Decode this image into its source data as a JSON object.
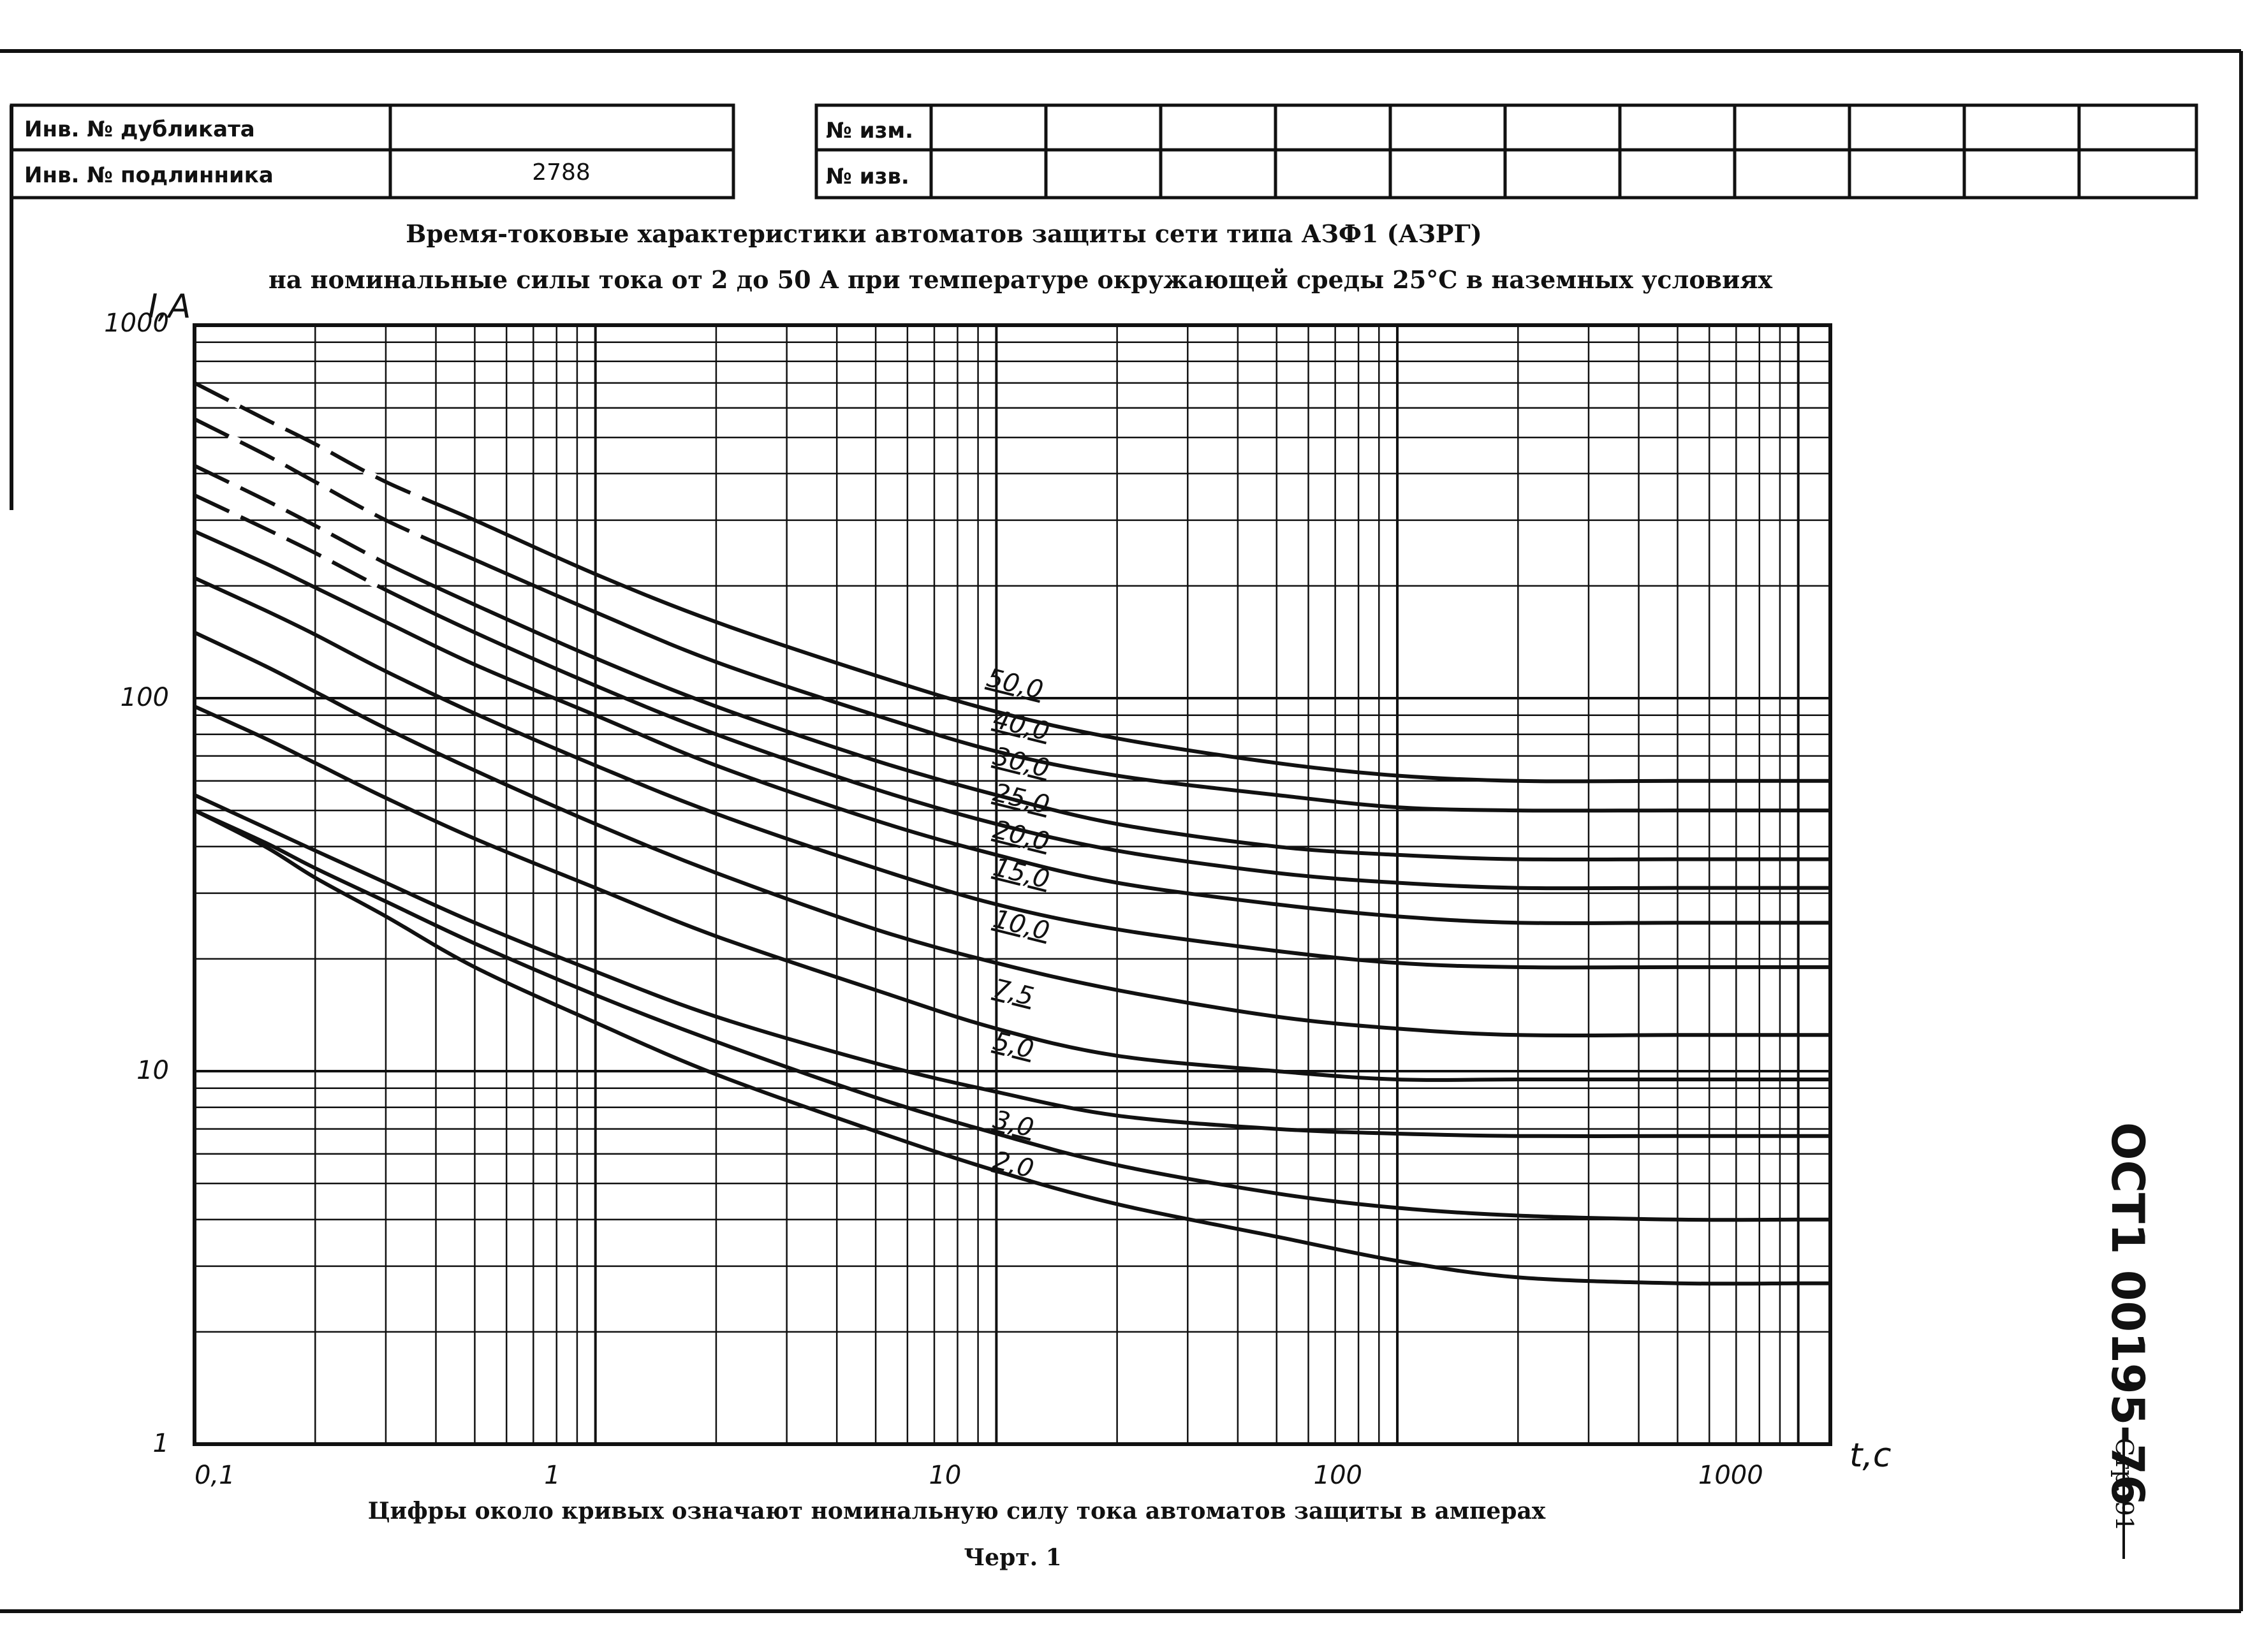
{
  "stamp": {
    "row1_label": "Инв. № дубликата",
    "row1_value": "",
    "row2_label": "Инв. № подлинника",
    "row2_value": "2788",
    "change_label": "№ изм.",
    "notice_label": "№ изв."
  },
  "title": {
    "line1": "Время-токовые характеристики автоматов защиты сети типа АЗФ1 (АЗРГ)",
    "line2": "на номинальные силы тока от 2 до 50 А при температуре окружающей среды 25°С в наземных условиях"
  },
  "footer": {
    "note": "Цифры около кривых означают номинальную силу тока автоматов защиты в амперах",
    "figure": "Черт. 1"
  },
  "side": {
    "doc_number": "ОСТ1 00195-76",
    "page_label": "Стр. 91"
  },
  "chart_data": {
    "type": "line",
    "xlabel": "t,c",
    "ylabel": "I,A",
    "xscale": "log",
    "yscale": "log",
    "xlim": [
      0.1,
      1000
    ],
    "ylim": [
      1,
      1000
    ],
    "x_tick_labels": [
      "0,1",
      "1",
      "10",
      "100",
      "1000"
    ],
    "y_tick_labels": [
      "1",
      "10",
      "100",
      "1000"
    ],
    "grid": true,
    "series": [
      {
        "name": "50,0",
        "label": "50,0",
        "x": [
          0.1,
          0.15,
          0.2,
          0.3,
          0.5,
          1,
          2,
          5,
          10,
          20,
          50,
          100,
          200,
          500,
          1000,
          1200
        ],
        "y": [
          700,
          560,
          480,
          380,
          300,
          215,
          160,
          115,
          92,
          78,
          67,
          62,
          60,
          60,
          60,
          60
        ],
        "dashed_until": 0.4
      },
      {
        "name": "40,0",
        "label": "40,0",
        "x": [
          0.1,
          0.15,
          0.2,
          0.3,
          0.5,
          1,
          2,
          5,
          10,
          20,
          50,
          100,
          200,
          500,
          1000,
          1200
        ],
        "y": [
          560,
          450,
          380,
          300,
          235,
          170,
          125,
          90,
          72,
          62,
          55,
          51,
          50,
          50,
          50,
          50
        ],
        "dashed_until": 0.4
      },
      {
        "name": "30,0",
        "label": "30,0",
        "x": [
          0.1,
          0.15,
          0.2,
          0.3,
          0.5,
          1,
          2,
          5,
          10,
          20,
          50,
          100,
          200,
          500,
          1000,
          1200
        ],
        "y": [
          420,
          340,
          290,
          230,
          178,
          128,
          95,
          68,
          55,
          46,
          40,
          38,
          37,
          37,
          37,
          37
        ],
        "dashed_until": 0.3
      },
      {
        "name": "25,0",
        "label": "25,0",
        "x": [
          0.1,
          0.15,
          0.2,
          0.3,
          0.5,
          1,
          2,
          5,
          10,
          20,
          50,
          100,
          200,
          500,
          1000,
          1200
        ],
        "y": [
          350,
          285,
          245,
          195,
          150,
          108,
          80,
          57,
          46,
          39,
          34,
          32,
          31,
          31,
          31,
          31
        ],
        "dashed_until": 0.3
      },
      {
        "name": "20,0",
        "label": "20,0",
        "x": [
          0.1,
          0.15,
          0.2,
          0.3,
          0.5,
          1,
          2,
          5,
          10,
          20,
          50,
          100,
          200,
          500,
          1000,
          1200
        ],
        "y": [
          280,
          230,
          198,
          160,
          123,
          90,
          66,
          47,
          38,
          32,
          28,
          26,
          25,
          25,
          25,
          25
        ]
      },
      {
        "name": "15,0",
        "label": "15,0",
        "x": [
          0.1,
          0.15,
          0.2,
          0.3,
          0.5,
          1,
          2,
          5,
          10,
          20,
          50,
          100,
          200,
          500,
          1000,
          1200
        ],
        "y": [
          210,
          172,
          148,
          118,
          91,
          66,
          49,
          35,
          28,
          24,
          21,
          19.5,
          19,
          19,
          19,
          19
        ]
      },
      {
        "name": "10,0",
        "label": "10,0",
        "x": [
          0.1,
          0.15,
          0.2,
          0.3,
          0.5,
          1,
          2,
          5,
          10,
          20,
          50,
          100,
          200,
          500,
          1000,
          1200
        ],
        "y": [
          150,
          122,
          104,
          83,
          64,
          46,
          34,
          24,
          19.5,
          16.5,
          14,
          13,
          12.5,
          12.5,
          12.5,
          12.5
        ]
      },
      {
        "name": "7,5",
        "label": "7,5",
        "x": [
          0.1,
          0.15,
          0.2,
          0.3,
          0.5,
          1,
          2,
          5,
          10,
          20,
          50,
          100,
          200,
          500,
          1000,
          1200
        ],
        "y": [
          95,
          78,
          67,
          54,
          42,
          31,
          23,
          16.5,
          13,
          11,
          10,
          9.5,
          9.5,
          9.5,
          9.5,
          9.5
        ]
      },
      {
        "name": "5,0",
        "label": "5,0",
        "x": [
          0.1,
          0.15,
          0.2,
          0.3,
          0.5,
          1,
          2,
          5,
          10,
          20,
          50,
          100,
          200,
          500,
          1000,
          1200
        ],
        "y": [
          55,
          45,
          39,
          32,
          25,
          18.5,
          14,
          10.5,
          8.8,
          7.6,
          7,
          6.8,
          6.7,
          6.7,
          6.7,
          6.7
        ]
      },
      {
        "name": "3,0",
        "label": "3,0",
        "x": [
          0.1,
          0.15,
          0.2,
          0.3,
          0.5,
          1,
          2,
          5,
          10,
          20,
          50,
          100,
          200,
          500,
          1000,
          1200
        ],
        "y": [
          50,
          41,
          35,
          28.5,
          22,
          16,
          12,
          8.5,
          6.8,
          5.6,
          4.7,
          4.3,
          4.1,
          4,
          4,
          4
        ]
      },
      {
        "name": "2,0",
        "label": "2,0",
        "x": [
          0.1,
          0.15,
          0.2,
          0.3,
          0.5,
          1,
          2,
          5,
          10,
          20,
          50,
          100,
          200,
          500,
          1000,
          1200
        ],
        "y": [
          50,
          40,
          33,
          26,
          19,
          13.5,
          9.8,
          6.9,
          5.4,
          4.4,
          3.6,
          3.1,
          2.8,
          2.7,
          2.7,
          2.7
        ]
      }
    ],
    "line_color": "#111111"
  }
}
